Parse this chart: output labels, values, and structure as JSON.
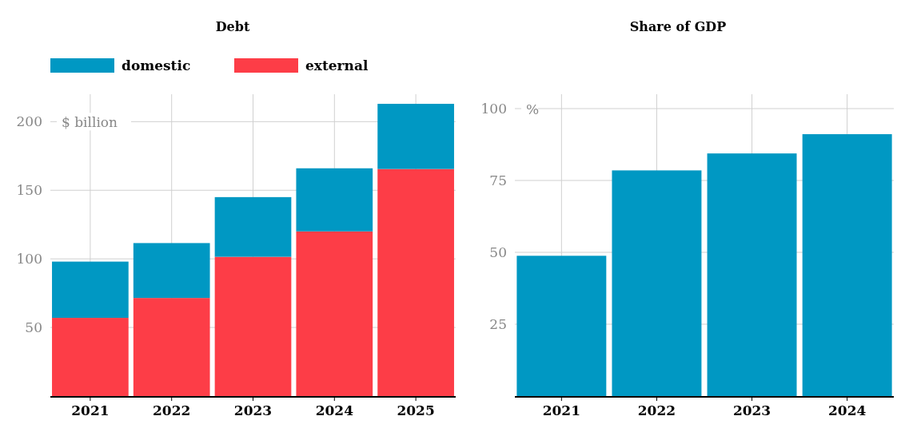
{
  "chart_data": [
    {
      "type": "bar",
      "title": "Debt",
      "categories": [
        "2021",
        "2022",
        "2023",
        "2024",
        "2025"
      ],
      "stacked": true,
      "legend": "top left",
      "grid": true,
      "ylim": [
        0,
        220
      ],
      "yticks": [
        50,
        100,
        150,
        200
      ],
      "annotations": [
        "$ billion"
      ],
      "series": [
        {
          "name": "external",
          "color": "#fd3d47",
          "values": [
            57,
            71.5,
            101.5,
            120,
            165.5
          ]
        },
        {
          "name": "domestic",
          "color": "#0098c3",
          "values": [
            41,
            40,
            43.5,
            46,
            47.5
          ]
        }
      ]
    },
    {
      "type": "bar",
      "title": "Share of GDP",
      "categories": [
        "2021",
        "2022",
        "2023",
        "2024"
      ],
      "grid": true,
      "ylim": [
        0,
        105
      ],
      "yticks": [
        25,
        50,
        75,
        100
      ],
      "annotations": [
        "%"
      ],
      "series": [
        {
          "color": "#0098c3",
          "values": [
            48.8,
            78.5,
            84.4,
            91.1
          ]
        }
      ]
    }
  ]
}
